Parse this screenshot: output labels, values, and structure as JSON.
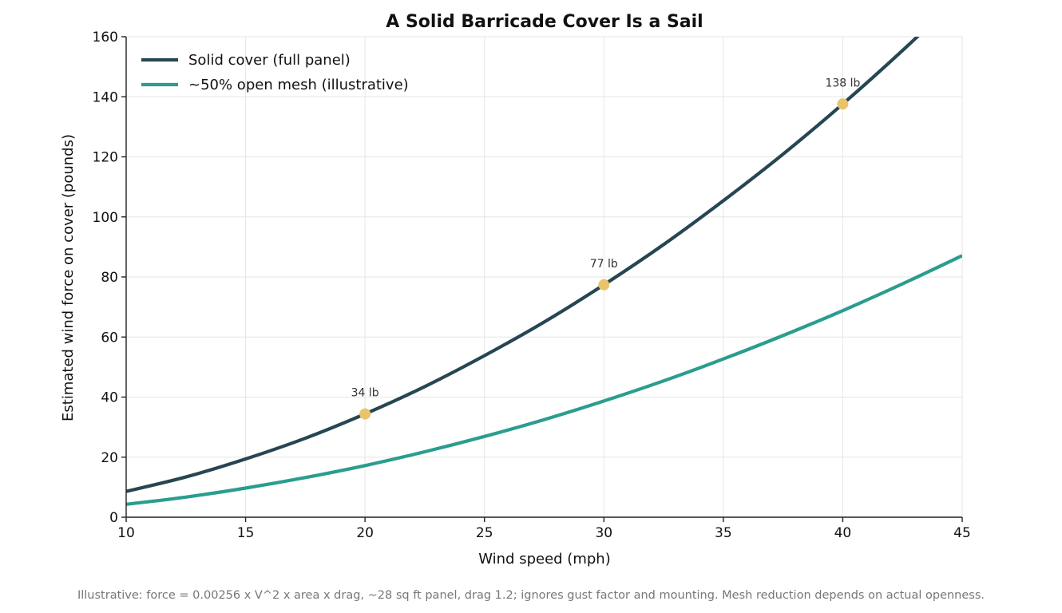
{
  "chart_data": {
    "type": "line",
    "title": "A Solid Barricade Cover Is a Sail",
    "xlabel": "Wind speed (mph)",
    "ylabel": "Estimated wind force on cover (pounds)",
    "xlim": [
      10,
      45
    ],
    "ylim": [
      0,
      160
    ],
    "xticks": [
      10,
      15,
      20,
      25,
      30,
      35,
      40,
      45
    ],
    "yticks": [
      0,
      20,
      40,
      60,
      80,
      100,
      120,
      140,
      160
    ],
    "grid": true,
    "legend_position": "top-left",
    "series": [
      {
        "name": "Solid cover (full panel)",
        "color": "#264653",
        "x": [
          10,
          12.5,
          15,
          17.5,
          20,
          22.5,
          25,
          27.5,
          30,
          32.5,
          35,
          37.5,
          40,
          42.5,
          45
        ],
        "y": [
          8.6,
          13.4,
          19.4,
          26.3,
          34.4,
          43.5,
          53.8,
          65.0,
          77.4,
          90.8,
          105.4,
          120.9,
          137.6,
          155.4,
          174.2
        ]
      },
      {
        "name": "~50% open mesh (illustrative)",
        "color": "#2a9d8f",
        "x": [
          10,
          12.5,
          15,
          17.5,
          20,
          22.5,
          25,
          27.5,
          30,
          32.5,
          35,
          37.5,
          40,
          42.5,
          45
        ],
        "y": [
          4.3,
          6.7,
          9.7,
          13.2,
          17.2,
          21.8,
          26.9,
          32.5,
          38.7,
          45.4,
          52.7,
          60.5,
          68.8,
          77.7,
          87.1
        ]
      }
    ],
    "highlight_points": {
      "color": "#e9c46a",
      "points": [
        {
          "x": 20,
          "y": 34.4,
          "label": "34 lb"
        },
        {
          "x": 30,
          "y": 77.4,
          "label": "77 lb"
        },
        {
          "x": 40,
          "y": 137.6,
          "label": "138 lb"
        }
      ]
    },
    "footnote": "Illustrative: force = 0.00256 x V^2 x area x drag, ~28 sq ft panel, drag 1.2; ignores gust factor and mounting. Mesh reduction depends on actual openness."
  }
}
